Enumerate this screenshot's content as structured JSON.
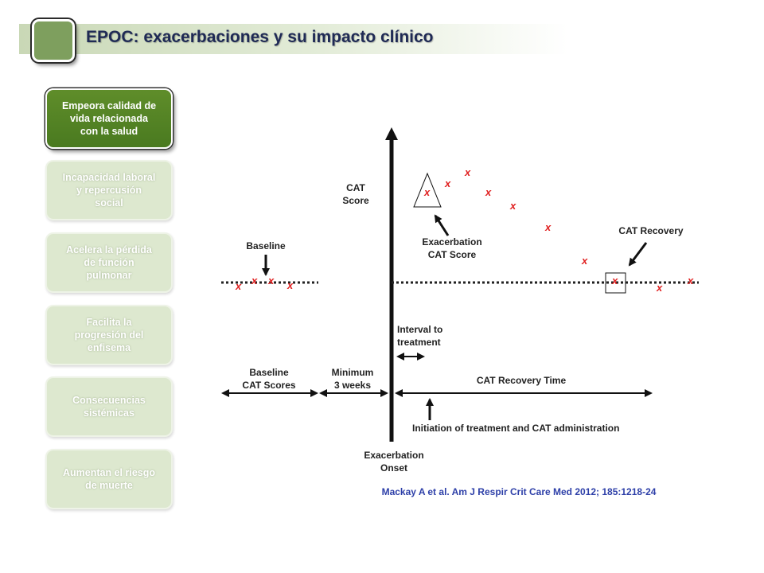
{
  "header": {
    "title": "EPOC: exacerbaciones y su impacto clínico",
    "accent_color": "#7e9f5e"
  },
  "sidebar": {
    "items": [
      {
        "label": "Empeora calidad de\nvida relacionada\ncon la salud",
        "active": true
      },
      {
        "label": "Incapacidad laboral\ny repercusión\nsocial",
        "active": false
      },
      {
        "label": "Acelera la pérdida\nde función\npulmonar",
        "active": false
      },
      {
        "label": "Facilita la\nprogresión del\nenfisema",
        "active": false
      },
      {
        "label": "Consecuencias\nsistémicas",
        "active": false
      },
      {
        "label": "Aumentan el riesgo\nde muerte",
        "active": false
      }
    ]
  },
  "diagram": {
    "labels": {
      "cat_score": [
        "CAT",
        "Score"
      ],
      "baseline": "Baseline",
      "exacerbation_cat_score": [
        "Exacerbation",
        "CAT Score"
      ],
      "cat_recovery": "CAT Recovery",
      "interval_to_treatment": [
        "Interval to",
        "treatment"
      ],
      "baseline_cat_scores": [
        "Baseline",
        "CAT Scores"
      ],
      "minimum_3_weeks": [
        "Minimum",
        "3 weeks"
      ],
      "cat_recovery_time": "CAT Recovery Time",
      "initiation": "Initiation of treatment and CAT administration",
      "exacerbation_onset": [
        "Exacerbation",
        "Onset"
      ]
    },
    "x_mark": "x",
    "x_mark_color": "#e02020",
    "citation": "Mackay A et al. Am J Respir Crit Care Med 2012; 185:1218-24"
  }
}
